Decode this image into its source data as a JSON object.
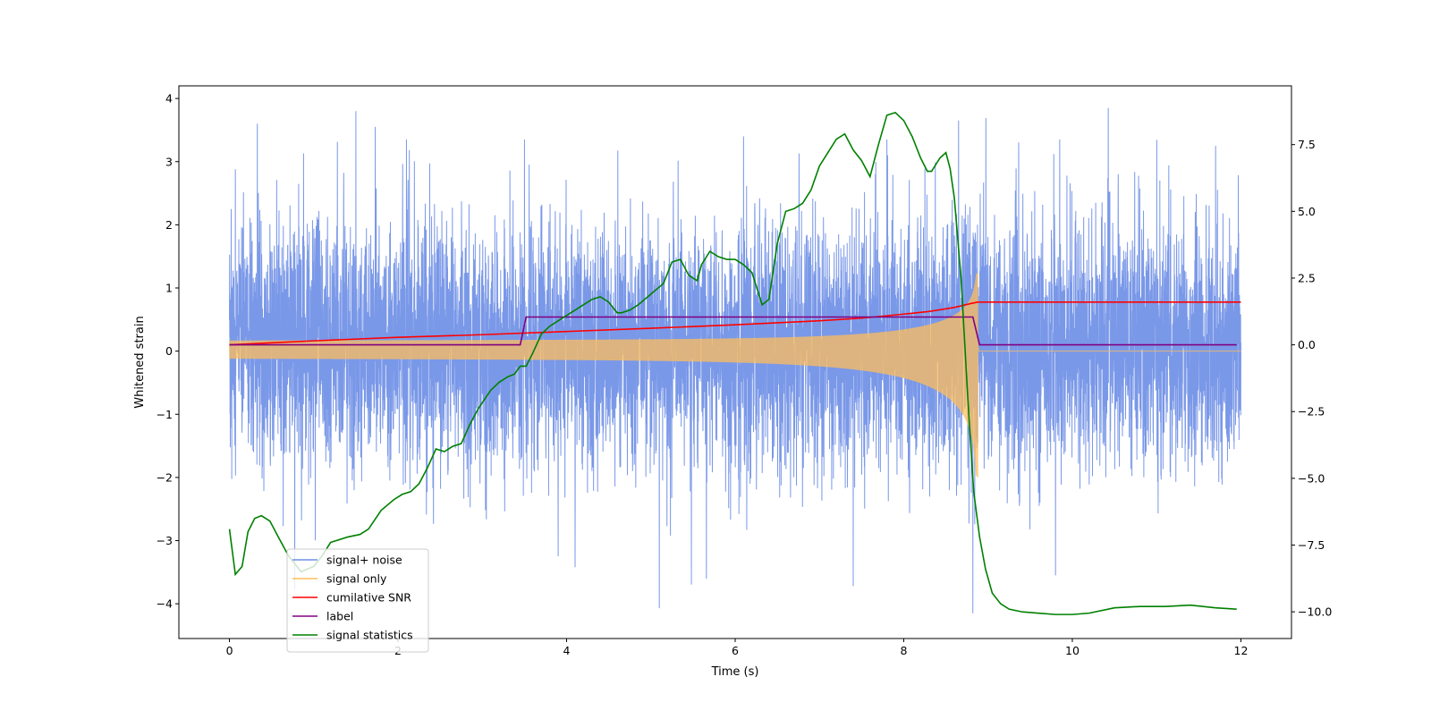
{
  "chart_data": {
    "type": "line",
    "xlabel": "Time (s)",
    "ylabel": "Whitened strain",
    "y2label": "",
    "xlim": [
      -0.6,
      12.6
    ],
    "ylim": [
      -4.55,
      4.2
    ],
    "y2lim": [
      -11.0,
      9.7
    ],
    "x_ticks": [
      0,
      2,
      4,
      6,
      8,
      10,
      12
    ],
    "y_ticks": [
      -4,
      -3,
      -2,
      -1,
      0,
      1,
      2,
      3,
      4
    ],
    "y2_ticks": [
      -10.0,
      -7.5,
      -5.0,
      -2.5,
      0.0,
      2.5,
      5.0,
      7.5
    ],
    "legend_position": "lower-left",
    "grid": false,
    "merger_time": 8.88,
    "series": [
      {
        "name": "signal+ noise",
        "color": "#6f8fe6",
        "axis": "left",
        "noise_sigma": 1.0,
        "x_range": [
          0,
          12
        ],
        "extremes": [
          {
            "x": 0.02,
            "y": 2.25
          },
          {
            "x": 0.07,
            "y": 2.88
          },
          {
            "x": 0.33,
            "y": 3.6
          },
          {
            "x": 1.5,
            "y": 3.8
          },
          {
            "x": 1.73,
            "y": 3.55
          },
          {
            "x": 2.1,
            "y": 3.35
          },
          {
            "x": 3.5,
            "y": 3.35
          },
          {
            "x": 6.1,
            "y": 3.4
          },
          {
            "x": 7.8,
            "y": 3.35
          },
          {
            "x": 8.65,
            "y": 3.65
          },
          {
            "x": 9.85,
            "y": 3.35
          },
          {
            "x": 11.7,
            "y": 3.25
          },
          {
            "x": 5.1,
            "y": -4.07
          },
          {
            "x": 7.4,
            "y": -3.72
          },
          {
            "x": 8.82,
            "y": -4.15
          },
          {
            "x": 4.1,
            "y": -3.42
          },
          {
            "x": 9.8,
            "y": -3.55
          },
          {
            "x": 3.9,
            "y": -3.25
          }
        ]
      },
      {
        "name": "signal only",
        "color": "#ffbe5c",
        "axis": "left",
        "chirp_amplitude_start": 0.12,
        "chirp_amplitude_peak": 2.0,
        "x_range": [
          0,
          8.88
        ],
        "after_merger_value": 0.0
      },
      {
        "name": "cumilative SNR",
        "color": "#ff0000",
        "axis": "right",
        "x": [
          0,
          1,
          2,
          3,
          4,
          5,
          6,
          7,
          7.5,
          8,
          8.3,
          8.6,
          8.8,
          8.88,
          10,
          12
        ],
        "y": [
          0.0,
          0.15,
          0.28,
          0.38,
          0.5,
          0.62,
          0.75,
          0.9,
          1.0,
          1.15,
          1.25,
          1.4,
          1.55,
          1.6,
          1.6,
          1.6
        ]
      },
      {
        "name": "label",
        "color": "#800080",
        "axis": "left",
        "x": [
          0,
          3.45,
          3.52,
          8.82,
          8.9,
          11.95
        ],
        "y": [
          0.1,
          0.1,
          0.54,
          0.54,
          0.1,
          0.1
        ]
      },
      {
        "name": "signal statistics",
        "color": "#008000",
        "axis": "right",
        "x": [
          0,
          0.07,
          0.15,
          0.22,
          0.3,
          0.38,
          0.48,
          0.58,
          0.7,
          0.85,
          1.0,
          1.1,
          1.2,
          1.4,
          1.55,
          1.65,
          1.8,
          1.95,
          2.05,
          2.15,
          2.25,
          2.35,
          2.45,
          2.55,
          2.65,
          2.75,
          2.85,
          2.95,
          3.1,
          3.2,
          3.3,
          3.38,
          3.45,
          3.52,
          3.6,
          3.7,
          3.8,
          3.9,
          4.0,
          4.1,
          4.2,
          4.3,
          4.4,
          4.5,
          4.6,
          4.65,
          4.75,
          4.85,
          5.0,
          5.15,
          5.25,
          5.35,
          5.45,
          5.55,
          5.6,
          5.7,
          5.8,
          5.9,
          6.0,
          6.1,
          6.2,
          6.25,
          6.32,
          6.4,
          6.5,
          6.6,
          6.7,
          6.8,
          6.9,
          7.0,
          7.1,
          7.2,
          7.3,
          7.4,
          7.5,
          7.6,
          7.7,
          7.8,
          7.9,
          8.0,
          8.1,
          8.2,
          8.28,
          8.33,
          8.43,
          8.5,
          8.55,
          8.6,
          8.68,
          8.76,
          8.83,
          8.9,
          8.97,
          9.05,
          9.15,
          9.25,
          9.4,
          9.6,
          9.8,
          10.0,
          10.2,
          10.5,
          10.8,
          11.1,
          11.4,
          11.7,
          11.95
        ],
        "y": [
          -6.9,
          -8.6,
          -8.3,
          -7.0,
          -6.5,
          -6.4,
          -6.6,
          -7.2,
          -7.9,
          -8.5,
          -8.3,
          -7.9,
          -7.4,
          -7.2,
          -7.1,
          -6.9,
          -6.2,
          -5.8,
          -5.6,
          -5.5,
          -5.2,
          -4.6,
          -3.9,
          -4.0,
          -3.8,
          -3.7,
          -3.0,
          -2.4,
          -1.7,
          -1.4,
          -1.2,
          -1.1,
          -0.8,
          -0.8,
          -0.3,
          0.4,
          0.7,
          0.9,
          1.1,
          1.3,
          1.5,
          1.7,
          1.8,
          1.6,
          1.2,
          1.2,
          1.3,
          1.5,
          1.9,
          2.3,
          3.1,
          3.2,
          2.6,
          2.4,
          3.0,
          3.5,
          3.3,
          3.2,
          3.2,
          3.0,
          2.7,
          2.2,
          1.5,
          1.7,
          3.8,
          5.0,
          5.1,
          5.3,
          5.8,
          6.7,
          7.2,
          7.7,
          7.9,
          7.3,
          6.9,
          6.3,
          7.5,
          8.6,
          8.7,
          8.4,
          7.8,
          7.0,
          6.5,
          6.5,
          7.0,
          7.2,
          6.6,
          5.5,
          2.5,
          -2.0,
          -5.5,
          -7.2,
          -8.4,
          -9.3,
          -9.7,
          -9.9,
          -10.0,
          -10.05,
          -10.1,
          -10.1,
          -10.05,
          -9.85,
          -9.8,
          -9.8,
          -9.75,
          -9.85,
          -9.9
        ]
      }
    ]
  }
}
